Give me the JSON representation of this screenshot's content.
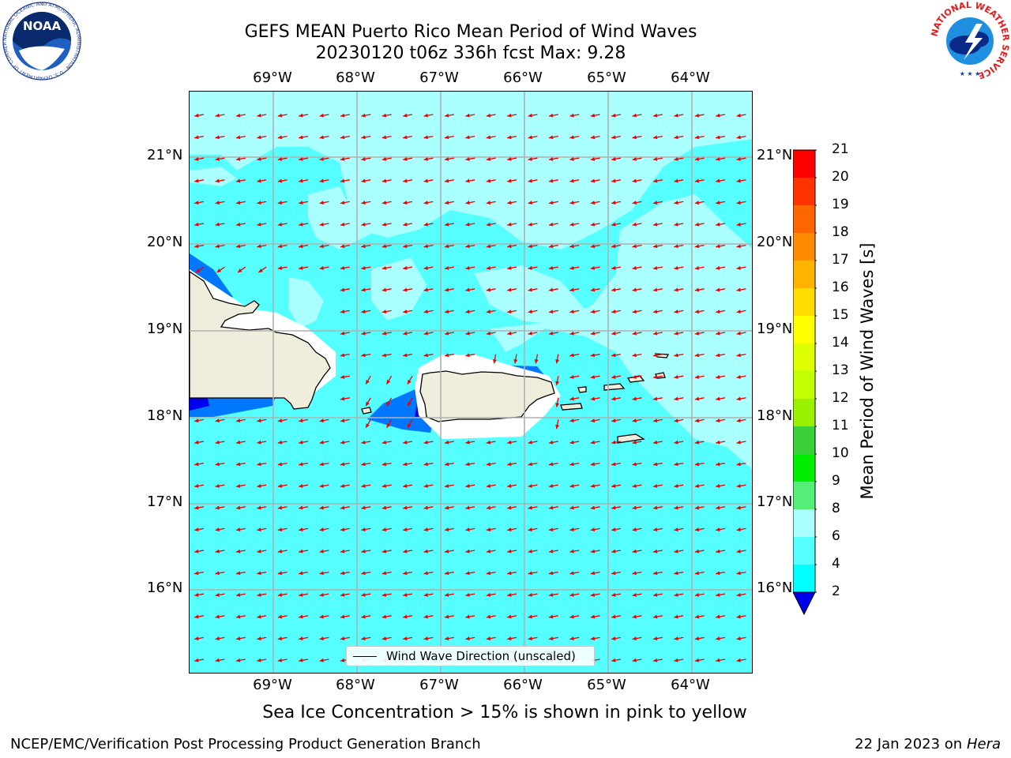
{
  "title": {
    "line1": "GEFS MEAN Puerto Rico Mean Period of Wind Waves",
    "line2": "20230120 t06z 336h fcst   Max: 9.28"
  },
  "longitudes": [
    "69°W",
    "68°W",
    "67°W",
    "66°W",
    "65°W",
    "64°W"
  ],
  "latitudes": [
    "21°N",
    "20°N",
    "19°N",
    "18°N",
    "17°N",
    "16°N"
  ],
  "legend": {
    "label": "Wind Wave Direction (unscaled)"
  },
  "colorbar": {
    "label": "Mean Period of Wind Waves [s]",
    "ticks": [
      "21",
      "20",
      "19",
      "18",
      "17",
      "16",
      "15",
      "14",
      "13",
      "12",
      "11",
      "10",
      "9",
      "8",
      "6",
      "4",
      "2"
    ],
    "colors": [
      "#ff0000",
      "#ff3300",
      "#ff6600",
      "#ff8c00",
      "#ffb300",
      "#ffdd00",
      "#ffff00",
      "#ddff00",
      "#c2ff00",
      "#9bf000",
      "#3cd13c",
      "#00ee00",
      "#55ee77",
      "#aaffff",
      "#55ffff",
      "#00ffff",
      "#0077ff"
    ],
    "under_color": "#0000ee"
  },
  "note": "Sea Ice Concentration > 15% is shown in pink to yellow",
  "footer": {
    "left": "NCEP/EMC/Verification Post Processing Product Generation Branch",
    "right_prefix": "22 Jan 2023 on",
    "right_host": "Hera"
  },
  "colors": {
    "ocean": "#55ffff",
    "light_zone": "#aaffff",
    "land": "#efeddc",
    "arrow": "#ee0000",
    "grid": "#b0b0b0"
  },
  "logos": {
    "noaa_text": "NOAA",
    "noaa_ring": "NATIONAL OCEANIC AND ATMOSPHERIC ADMINISTRATION · U.S. DEPARTMENT OF COMMERCE",
    "nws_ring": "NATIONAL WEATHER SERVICE"
  }
}
